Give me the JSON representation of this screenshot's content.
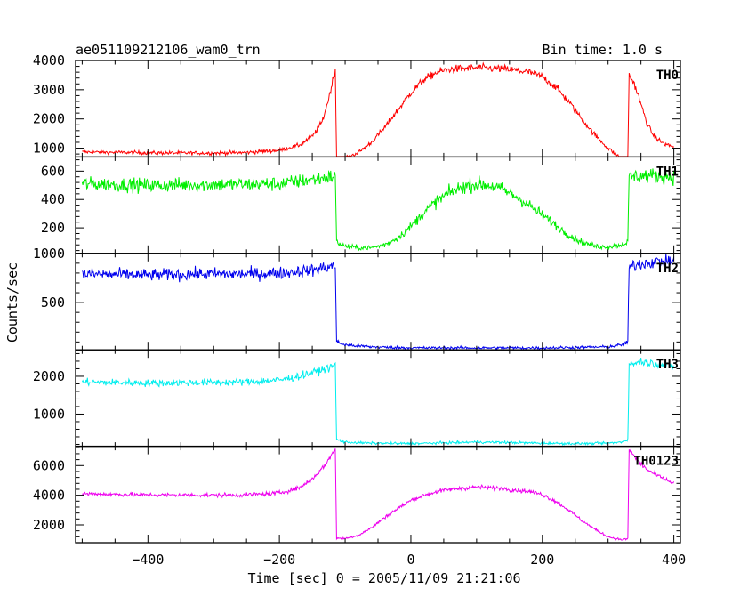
{
  "chart_data": {
    "type": "line",
    "title": "ae051109212106_wam0_trn",
    "bin_time_label": "Bin time: 1.0 s",
    "xlabel": "Time [sec] 0 = 2005/11/09 21:21:06",
    "ylabel": "Counts/sec",
    "xlim": [
      -510,
      410
    ],
    "x_ticks": [
      -400,
      -200,
      0,
      200,
      400
    ],
    "grid": false,
    "panels": [
      {
        "name": "TH0",
        "color": "#ff0000",
        "ylim": [
          700,
          4000
        ],
        "y_ticks": [
          1000,
          2000,
          3000,
          4000
        ],
        "points": [
          [
            -500,
            870
          ],
          [
            -400,
            840
          ],
          [
            -300,
            830
          ],
          [
            -250,
            850
          ],
          [
            -200,
            930
          ],
          [
            -170,
            1100
          ],
          [
            -150,
            1400
          ],
          [
            -135,
            1900
          ],
          [
            -125,
            2700
          ],
          [
            -117,
            3500
          ],
          [
            -115,
            3700
          ],
          [
            -113,
            560
          ],
          [
            -100,
            650
          ],
          [
            -80,
            850
          ],
          [
            -60,
            1200
          ],
          [
            -40,
            1700
          ],
          [
            -20,
            2300
          ],
          [
            0,
            2900
          ],
          [
            20,
            3350
          ],
          [
            40,
            3600
          ],
          [
            60,
            3700
          ],
          [
            100,
            3750
          ],
          [
            140,
            3720
          ],
          [
            180,
            3600
          ],
          [
            200,
            3450
          ],
          [
            220,
            3100
          ],
          [
            240,
            2600
          ],
          [
            260,
            2000
          ],
          [
            280,
            1450
          ],
          [
            300,
            1000
          ],
          [
            320,
            650
          ],
          [
            330,
            580
          ],
          [
            332,
            3500
          ],
          [
            340,
            3200
          ],
          [
            350,
            2500
          ],
          [
            360,
            1800
          ],
          [
            370,
            1400
          ],
          [
            385,
            1150
          ],
          [
            400,
            1050
          ]
        ]
      },
      {
        "name": "TH1",
        "color": "#00ee00",
        "ylim": [
          20,
          700
        ],
        "y_ticks": [
          200,
          400,
          600
        ],
        "points": [
          [
            -500,
            510
          ],
          [
            -400,
            500
          ],
          [
            -300,
            505
          ],
          [
            -200,
            510
          ],
          [
            -150,
            540
          ],
          [
            -120,
            560
          ],
          [
            -115,
            570
          ],
          [
            -113,
            100
          ],
          [
            -100,
            70
          ],
          [
            -80,
            60
          ],
          [
            -60,
            60
          ],
          [
            -40,
            80
          ],
          [
            -20,
            130
          ],
          [
            0,
            210
          ],
          [
            20,
            310
          ],
          [
            40,
            390
          ],
          [
            60,
            450
          ],
          [
            80,
            490
          ],
          [
            100,
            510
          ],
          [
            120,
            500
          ],
          [
            140,
            470
          ],
          [
            160,
            420
          ],
          [
            180,
            360
          ],
          [
            200,
            290
          ],
          [
            220,
            220
          ],
          [
            240,
            150
          ],
          [
            260,
            100
          ],
          [
            280,
            70
          ],
          [
            300,
            65
          ],
          [
            320,
            80
          ],
          [
            330,
            100
          ],
          [
            332,
            560
          ],
          [
            360,
            570
          ],
          [
            400,
            560
          ]
        ]
      },
      {
        "name": "TH2",
        "color": "#0000ee",
        "ylim": [
          20,
          1000
        ],
        "y_ticks": [
          500,
          1000
        ],
        "points": [
          [
            -500,
            790
          ],
          [
            -400,
            780
          ],
          [
            -300,
            790
          ],
          [
            -250,
            790
          ],
          [
            -200,
            800
          ],
          [
            -150,
            830
          ],
          [
            -120,
            870
          ],
          [
            -115,
            880
          ],
          [
            -113,
            100
          ],
          [
            -100,
            70
          ],
          [
            -60,
            50
          ],
          [
            0,
            40
          ],
          [
            100,
            40
          ],
          [
            200,
            40
          ],
          [
            300,
            50
          ],
          [
            320,
            70
          ],
          [
            330,
            100
          ],
          [
            332,
            860
          ],
          [
            350,
            900
          ],
          [
            400,
            930
          ]
        ]
      },
      {
        "name": "TH3",
        "color": "#00eeee",
        "ylim": [
          150,
          2700
        ],
        "y_ticks": [
          1000,
          2000
        ],
        "points": [
          [
            -500,
            1850
          ],
          [
            -400,
            1820
          ],
          [
            -300,
            1840
          ],
          [
            -250,
            1850
          ],
          [
            -200,
            1900
          ],
          [
            -170,
            2000
          ],
          [
            -140,
            2150
          ],
          [
            -120,
            2250
          ],
          [
            -115,
            2300
          ],
          [
            -113,
            330
          ],
          [
            -100,
            260
          ],
          [
            -60,
            230
          ],
          [
            0,
            220
          ],
          [
            50,
            240
          ],
          [
            100,
            260
          ],
          [
            150,
            250
          ],
          [
            200,
            230
          ],
          [
            260,
            220
          ],
          [
            300,
            230
          ],
          [
            320,
            260
          ],
          [
            330,
            330
          ],
          [
            332,
            2300
          ],
          [
            350,
            2400
          ],
          [
            400,
            2250
          ]
        ]
      },
      {
        "name": "TH0123",
        "color": "#ee00ee",
        "ylim": [
          800,
          7300
        ],
        "y_ticks": [
          2000,
          4000,
          6000
        ],
        "points": [
          [
            -500,
            4100
          ],
          [
            -400,
            4020
          ],
          [
            -300,
            4000
          ],
          [
            -250,
            4020
          ],
          [
            -200,
            4150
          ],
          [
            -170,
            4500
          ],
          [
            -150,
            5100
          ],
          [
            -135,
            5800
          ],
          [
            -125,
            6400
          ],
          [
            -117,
            7000
          ],
          [
            -115,
            7200
          ],
          [
            -113,
            1100
          ],
          [
            -100,
            1080
          ],
          [
            -80,
            1300
          ],
          [
            -60,
            1800
          ],
          [
            -40,
            2500
          ],
          [
            -20,
            3100
          ],
          [
            0,
            3650
          ],
          [
            20,
            4000
          ],
          [
            40,
            4250
          ],
          [
            60,
            4400
          ],
          [
            100,
            4550
          ],
          [
            140,
            4450
          ],
          [
            180,
            4250
          ],
          [
            200,
            4050
          ],
          [
            220,
            3600
          ],
          [
            240,
            3000
          ],
          [
            260,
            2300
          ],
          [
            280,
            1700
          ],
          [
            300,
            1200
          ],
          [
            320,
            1000
          ],
          [
            330,
            1050
          ],
          [
            332,
            7100
          ],
          [
            345,
            6300
          ],
          [
            360,
            5700
          ],
          [
            380,
            5200
          ],
          [
            400,
            4800
          ]
        ]
      }
    ]
  }
}
